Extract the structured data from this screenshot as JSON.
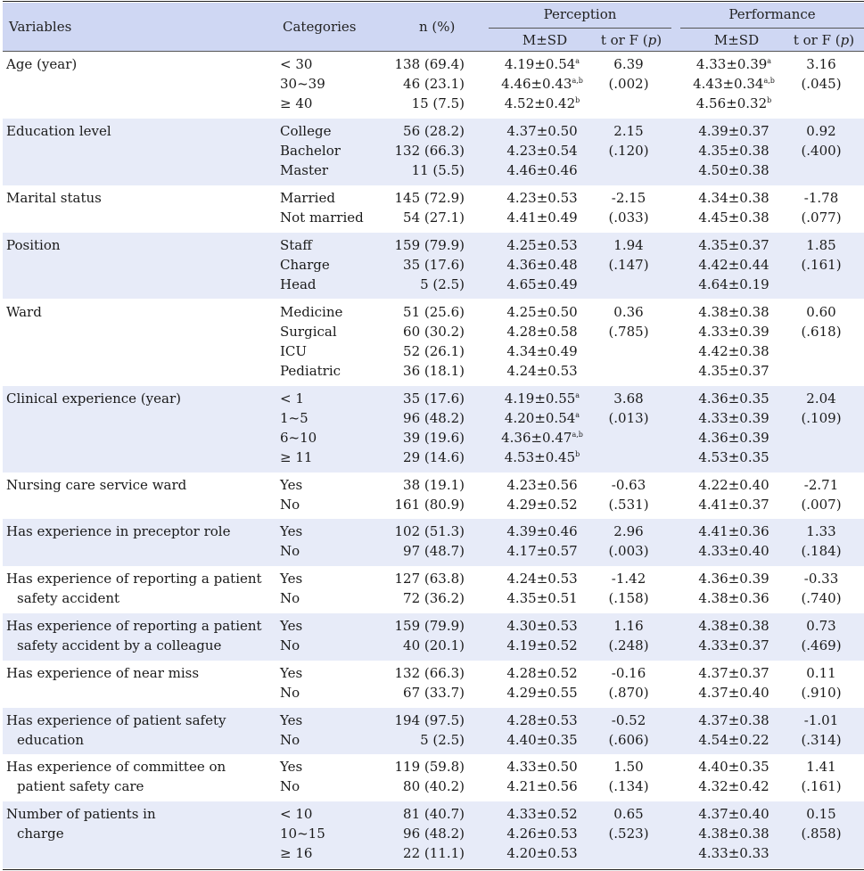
{
  "header": {
    "variables": "Variables",
    "categories": "Categories",
    "n_pct": "n (%)",
    "perception": "Perception",
    "performance": "Performance",
    "msd": "M±SD",
    "t_or_f": "t or F (",
    "p": "p",
    "close": ")"
  },
  "rows": [
    {
      "variable": [
        "Age (year)"
      ],
      "categories": [
        "< 30",
        "30~39",
        "≥ 40"
      ],
      "n": [
        "138 (69.4)",
        "46 (23.1)",
        "15 (7.5)"
      ],
      "perc_msd": [
        "4.19±0.54",
        "4.46±0.43",
        "4.52±0.42"
      ],
      "perc_sup": [
        "a",
        "a,b",
        "b"
      ],
      "perc_t": [
        "6.39",
        "(.002)"
      ],
      "perf_msd": [
        "4.33±0.39",
        "4.43±0.34",
        "4.56±0.32"
      ],
      "perf_sup": [
        "a",
        "a,b",
        "b"
      ],
      "perf_t": [
        "3.16",
        "(.045)"
      ]
    },
    {
      "variable": [
        "Education level"
      ],
      "categories": [
        "College",
        "Bachelor",
        "Master"
      ],
      "n": [
        "56 (28.2)",
        "132 (66.3)",
        "11 (5.5)"
      ],
      "perc_msd": [
        "4.37±0.50",
        "4.23±0.54",
        "4.46±0.46"
      ],
      "perc_t": [
        "2.15",
        "(.120)"
      ],
      "perf_msd": [
        "4.39±0.37",
        "4.35±0.38",
        "4.50±0.38"
      ],
      "perf_t": [
        "0.92",
        "(.400)"
      ]
    },
    {
      "variable": [
        "Marital status"
      ],
      "categories": [
        "Married",
        "Not married"
      ],
      "n": [
        "145 (72.9)",
        "54 (27.1)"
      ],
      "perc_msd": [
        "4.23±0.53",
        "4.41±0.49"
      ],
      "perc_t": [
        "-2.15",
        "(.033)"
      ],
      "perf_msd": [
        "4.34±0.38",
        "4.45±0.38"
      ],
      "perf_t": [
        "-1.78",
        "(.077)"
      ]
    },
    {
      "variable": [
        "Position"
      ],
      "categories": [
        "Staff",
        "Charge",
        "Head"
      ],
      "n": [
        "159 (79.9)",
        "35 (17.6)",
        "5 (2.5)"
      ],
      "perc_msd": [
        "4.25±0.53",
        "4.36±0.48",
        "4.65±0.49"
      ],
      "perc_t": [
        "1.94",
        "(.147)"
      ],
      "perf_msd": [
        "4.35±0.37",
        "4.42±0.44",
        "4.64±0.19"
      ],
      "perf_t": [
        "1.85",
        "(.161)"
      ]
    },
    {
      "variable": [
        "Ward"
      ],
      "categories": [
        "Medicine",
        "Surgical",
        "ICU",
        "Pediatric"
      ],
      "n": [
        "51 (25.6)",
        "60 (30.2)",
        "52 (26.1)",
        "36 (18.1)"
      ],
      "perc_msd": [
        "4.25±0.50",
        "4.28±0.58",
        "4.34±0.49",
        "4.24±0.53"
      ],
      "perc_t": [
        "0.36",
        "(.785)"
      ],
      "perf_msd": [
        "4.38±0.38",
        "4.33±0.39",
        "4.42±0.38",
        "4.35±0.37"
      ],
      "perf_t": [
        "0.60",
        "(.618)"
      ]
    },
    {
      "variable": [
        "Clinical experience (year)"
      ],
      "categories": [
        "< 1",
        "1~5",
        "6~10",
        "≥ 11"
      ],
      "n": [
        "35 (17.6)",
        "96 (48.2)",
        "39 (19.6)",
        "29 (14.6)"
      ],
      "perc_msd": [
        "4.19±0.55",
        "4.20±0.54",
        "4.36±0.47",
        "4.53±0.45"
      ],
      "perc_sup": [
        "a",
        "a",
        "a,b",
        "b"
      ],
      "perc_t": [
        "3.68",
        "(.013)"
      ],
      "perf_msd": [
        "4.36±0.35",
        "4.33±0.39",
        "4.36±0.39",
        "4.53±0.35"
      ],
      "perf_t": [
        "2.04",
        "(.109)"
      ]
    },
    {
      "variable": [
        "Nursing care service ward"
      ],
      "categories": [
        "Yes",
        "No"
      ],
      "n": [
        "38 (19.1)",
        "161 (80.9)"
      ],
      "perc_msd": [
        "4.23±0.56",
        "4.29±0.52"
      ],
      "perc_t": [
        "-0.63",
        "(.531)"
      ],
      "perf_msd": [
        "4.22±0.40",
        "4.41±0.37"
      ],
      "perf_t": [
        "-2.71",
        "(.007)"
      ]
    },
    {
      "variable": [
        "Has experience in preceptor role"
      ],
      "categories": [
        "Yes",
        "No"
      ],
      "n": [
        "102 (51.3)",
        "97 (48.7)"
      ],
      "perc_msd": [
        "4.39±0.46",
        "4.17±0.57"
      ],
      "perc_t": [
        "2.96",
        "(.003)"
      ],
      "perf_msd": [
        "4.41±0.36",
        "4.33±0.40"
      ],
      "perf_t": [
        "1.33",
        "(.184)"
      ]
    },
    {
      "variable": [
        "Has experience of reporting a patient",
        "safety accident"
      ],
      "categories": [
        "Yes",
        "No"
      ],
      "n": [
        "127 (63.8)",
        "72 (36.2)"
      ],
      "perc_msd": [
        "4.24±0.53",
        "4.35±0.51"
      ],
      "perc_t": [
        "-1.42",
        "(.158)"
      ],
      "perf_msd": [
        "4.36±0.39",
        "4.38±0.36"
      ],
      "perf_t": [
        "-0.33",
        "(.740)"
      ]
    },
    {
      "variable": [
        "Has experience of reporting a patient",
        "safety accident by a colleague"
      ],
      "categories": [
        "Yes",
        "No"
      ],
      "n": [
        "159 (79.9)",
        "40 (20.1)"
      ],
      "perc_msd": [
        "4.30±0.53",
        "4.19±0.52"
      ],
      "perc_t": [
        "1.16",
        "(.248)"
      ],
      "perf_msd": [
        "4.38±0.38",
        "4.33±0.37"
      ],
      "perf_t": [
        "0.73",
        "(.469)"
      ]
    },
    {
      "variable": [
        "Has experience of near miss"
      ],
      "categories": [
        "Yes",
        "No"
      ],
      "n": [
        "132 (66.3)",
        "67 (33.7)"
      ],
      "perc_msd": [
        "4.28±0.52",
        "4.29±0.55"
      ],
      "perc_t": [
        "-0.16",
        "(.870)"
      ],
      "perf_msd": [
        "4.37±0.37",
        "4.37±0.40"
      ],
      "perf_t": [
        "0.11",
        "(.910)"
      ]
    },
    {
      "variable": [
        "Has experience of patient safety",
        "education"
      ],
      "categories": [
        "Yes",
        "No"
      ],
      "n": [
        "194 (97.5)",
        "5 (2.5)"
      ],
      "perc_msd": [
        "4.28±0.53",
        "4.40±0.35"
      ],
      "perc_t": [
        "-0.52",
        "(.606)"
      ],
      "perf_msd": [
        "4.37±0.38",
        "4.54±0.22"
      ],
      "perf_t": [
        "-1.01",
        "(.314)"
      ]
    },
    {
      "variable": [
        "Has experience of committee on",
        "patient safety care"
      ],
      "categories": [
        "Yes",
        "No"
      ],
      "n": [
        "119 (59.8)",
        "80 (40.2)"
      ],
      "perc_msd": [
        "4.33±0.50",
        "4.21±0.56"
      ],
      "perc_t": [
        "1.50",
        "(.134)"
      ],
      "perf_msd": [
        "4.40±0.35",
        "4.32±0.42"
      ],
      "perf_t": [
        "1.41",
        "(.161)"
      ]
    },
    {
      "variable": [
        "Number of patients in",
        "charge"
      ],
      "categories": [
        "< 10",
        "10~15",
        "≥ 16"
      ],
      "n": [
        "81 (40.7)",
        "96 (48.2)",
        "22 (11.1)"
      ],
      "perc_msd": [
        "4.33±0.52",
        "4.26±0.53",
        "4.20±0.53"
      ],
      "perc_t": [
        "0.65",
        "(.523)"
      ],
      "perf_msd": [
        "4.37±0.40",
        "4.38±0.38",
        "4.33±0.33"
      ],
      "perf_t": [
        "0.15",
        "(.858)"
      ]
    }
  ]
}
